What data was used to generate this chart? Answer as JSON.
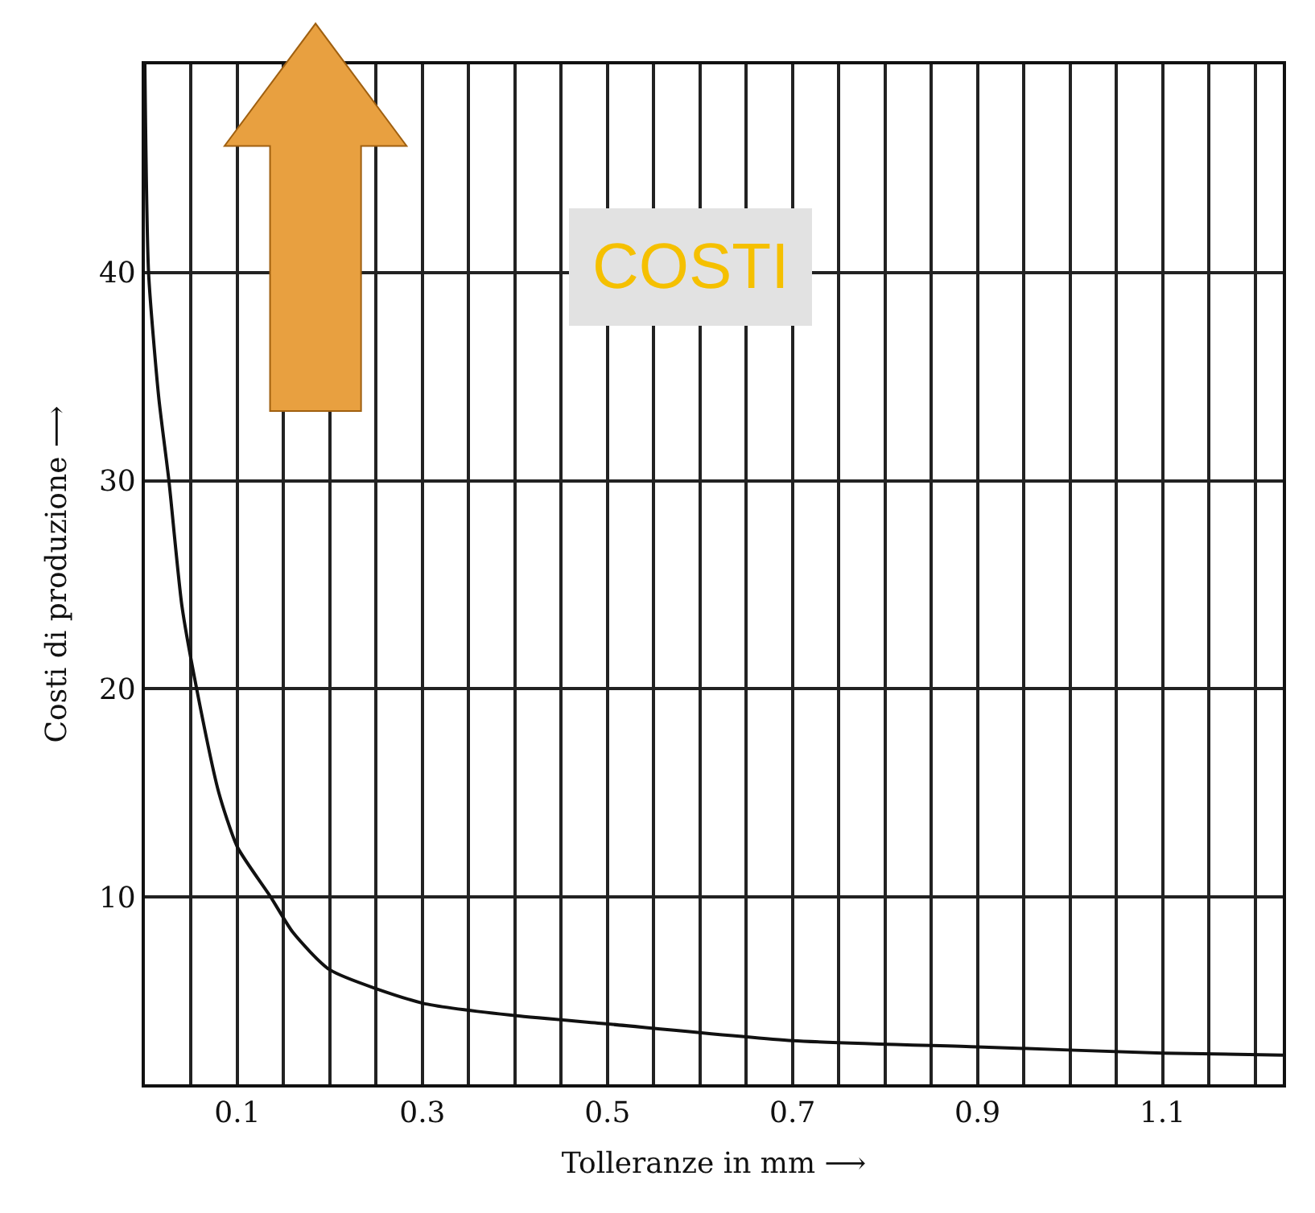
{
  "chart_data": {
    "type": "line",
    "xlabel": "Tolleranze in mm ⟶",
    "ylabel": "Costi di produzione ⟶",
    "annotations": [
      "COSTI"
    ],
    "series": [
      {
        "color": "#111111",
        "x": [
          0.0,
          0.004,
          0.015,
          0.026,
          0.04,
          0.056,
          0.08,
          0.1,
          0.136,
          0.16,
          0.2,
          0.3,
          0.4,
          0.5,
          0.7,
          0.9,
          1.1,
          1.23
        ],
        "values": [
          50,
          40,
          34,
          30,
          24,
          20,
          15,
          12.4,
          10,
          8.3,
          6.5,
          4.9,
          4.3,
          3.9,
          3.1,
          2.8,
          2.5,
          2.4
        ]
      }
    ],
    "xlim": [
      0,
      1.23
    ],
    "ylim": [
      1,
      50
    ],
    "xticks": [
      {
        "value": 0.05,
        "label": null
      },
      0.1,
      {
        "value": 0.15,
        "label": null
      },
      {
        "value": 0.2,
        "label": null
      },
      {
        "value": 0.25,
        "label": null
      },
      0.3,
      {
        "value": 0.35,
        "label": null
      },
      {
        "value": 0.4,
        "label": null
      },
      {
        "value": 0.45,
        "label": null
      },
      0.5,
      {
        "value": 0.55,
        "label": null
      },
      {
        "value": 0.6,
        "label": null
      },
      {
        "value": 0.65,
        "label": null
      },
      0.7,
      {
        "value": 0.75,
        "label": null
      },
      {
        "value": 0.8,
        "label": null
      },
      {
        "value": 0.85,
        "label": null
      },
      0.9,
      {
        "value": 0.95,
        "label": null
      },
      {
        "value": 1.0,
        "label": null
      },
      {
        "value": 1.05,
        "label": null
      },
      1.1,
      {
        "value": 1.15,
        "label": null
      },
      {
        "value": 1.2,
        "label": null
      }
    ],
    "yticks": [
      10,
      20,
      30,
      40
    ],
    "grid": true,
    "marker": "none",
    "line_style": "solid"
  }
}
